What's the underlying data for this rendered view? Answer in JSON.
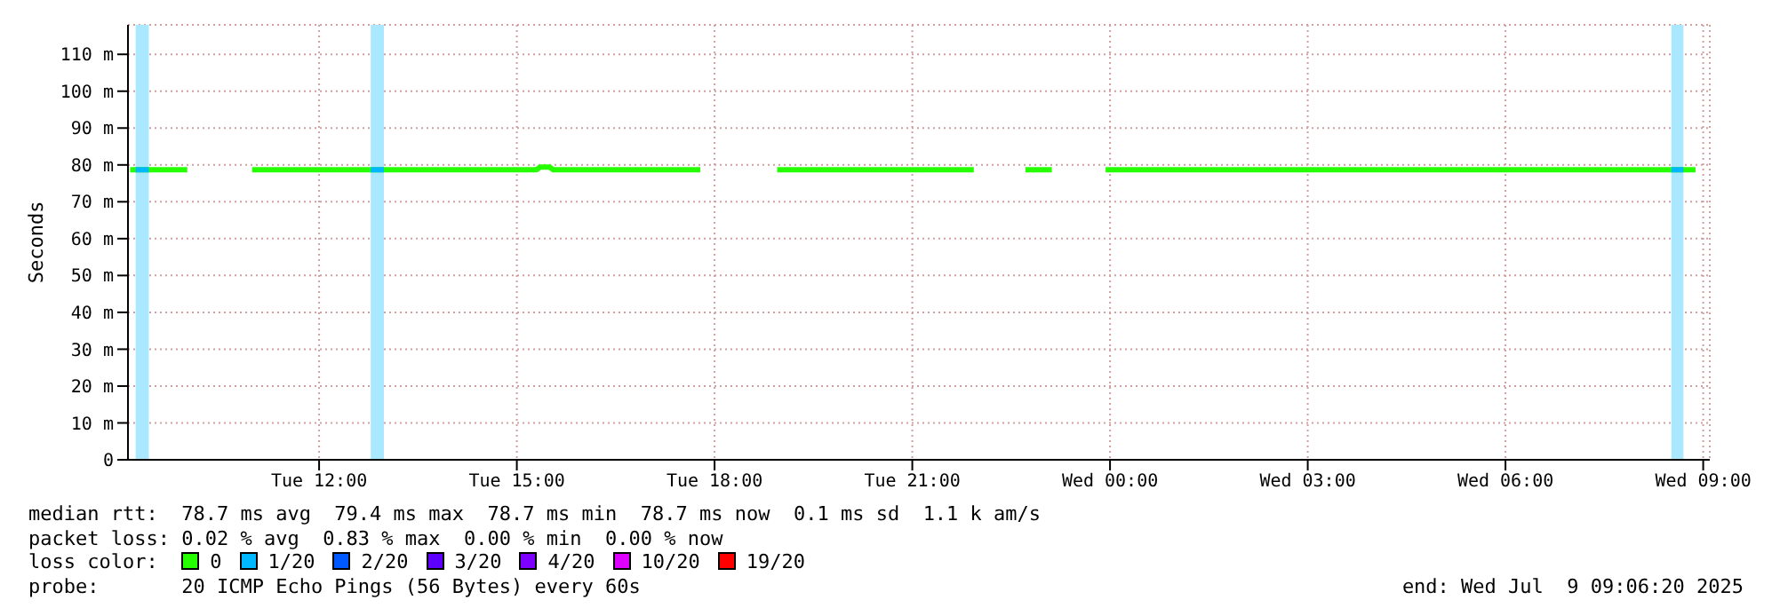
{
  "chart_data": {
    "type": "line",
    "ylabel": "Seconds",
    "legend_title": "loss color:",
    "legend": "bottom",
    "grid": true,
    "marker": "none",
    "line_style": "solid",
    "xlim": [
      "2025-07-08T09:06",
      "2025-07-09T09:06"
    ],
    "xticks": [
      {
        "value": "2025-07-08T12:00",
        "label": "Tue 12:00"
      },
      {
        "value": "2025-07-08T15:00",
        "label": "Tue 15:00"
      },
      {
        "value": "2025-07-08T18:00",
        "label": "Tue 18:00"
      },
      {
        "value": "2025-07-08T21:00",
        "label": "Tue 21:00"
      },
      {
        "value": "2025-07-09T00:00",
        "label": "Wed 00:00"
      },
      {
        "value": "2025-07-09T03:00",
        "label": "Wed 03:00"
      },
      {
        "value": "2025-07-09T06:00",
        "label": "Wed 06:00"
      },
      {
        "value": "2025-07-09T09:00",
        "label": "Wed 09:00"
      }
    ],
    "ylim": [
      0,
      118
    ],
    "yticks": [
      0,
      {
        "value": 10,
        "label": "10 m"
      },
      {
        "value": 20,
        "label": "20 m"
      },
      {
        "value": 30,
        "label": "30 m"
      },
      {
        "value": 40,
        "label": "40 m"
      },
      {
        "value": 50,
        "label": "50 m"
      },
      {
        "value": 60,
        "label": "60 m"
      },
      {
        "value": 70,
        "label": "70 m"
      },
      {
        "value": 80,
        "label": "80 m"
      },
      {
        "value": 90,
        "label": "90 m"
      },
      {
        "value": 100,
        "label": "100 m"
      },
      {
        "value": 110,
        "label": "110 m"
      }
    ],
    "bands": [
      {
        "axis": "x",
        "from": "2025-07-08T09:13",
        "to": "2025-07-08T09:25",
        "color": "#aae8ff"
      },
      {
        "axis": "x",
        "from": "2025-07-08T12:47",
        "to": "2025-07-08T12:59",
        "color": "#aae8ff"
      },
      {
        "axis": "x",
        "from": "2025-07-09T08:31",
        "to": "2025-07-09T08:42",
        "color": "#aae8ff"
      }
    ],
    "series": [
      {
        "name": "0",
        "color": "#26ff00",
        "x": [
          "2025-07-08T09:08",
          "2025-07-08T10:00",
          "2025-07-08T10:30",
          "2025-07-08T10:59",
          "2025-07-08T15:18",
          "2025-07-08T15:21",
          "2025-07-08T15:30",
          "2025-07-08T15:33",
          "2025-07-08T17:47",
          "2025-07-08T18:24",
          "2025-07-08T18:57",
          "2025-07-08T21:56",
          "2025-07-08T22:18",
          "2025-07-08T22:43",
          "2025-07-08T23:07",
          "2025-07-08T23:30",
          "2025-07-08T23:56",
          "2025-07-09T07:54",
          "2025-07-09T08:00",
          "2025-07-09T08:53"
        ],
        "values": [
          78.7,
          78.7,
          null,
          78.7,
          78.7,
          79.4,
          79.4,
          78.7,
          78.7,
          null,
          78.7,
          78.7,
          null,
          78.7,
          78.7,
          null,
          78.7,
          78.7,
          78.7,
          78.7
        ]
      },
      {
        "name": "1/20",
        "color": "#00b8ff",
        "x": [
          "2025-07-08T09:13",
          "2025-07-08T09:25",
          "2025-07-08T09:36",
          "2025-07-08T12:47",
          "2025-07-08T12:59",
          "2025-07-08T13:06",
          "2025-07-09T08:31",
          "2025-07-09T08:42"
        ],
        "values": [
          78.7,
          78.7,
          null,
          78.7,
          78.7,
          null,
          78.7,
          78.7
        ]
      },
      {
        "name": "2/20",
        "color": "#0059ff"
      },
      {
        "name": "3/20",
        "color": "#5e00ff"
      },
      {
        "name": "4/20",
        "color": "#7e00ff"
      },
      {
        "name": "10/20",
        "color": "#dd00ff"
      },
      {
        "name": "19/20",
        "color": "#ff0000"
      }
    ],
    "annotations": [
      "median rtt:  78.7 ms avg  79.4 ms max  78.7 ms min  78.7 ms now  0.1 ms sd  1.1 k am/s",
      "packet loss: 0.02 % avg  0.83 % max  0.00 % min  0.00 % now",
      "probe:       20 ICMP Echo Pings (56 Bytes) every 60s",
      "end: Wed Jul  9 09:06:20 2025"
    ]
  }
}
